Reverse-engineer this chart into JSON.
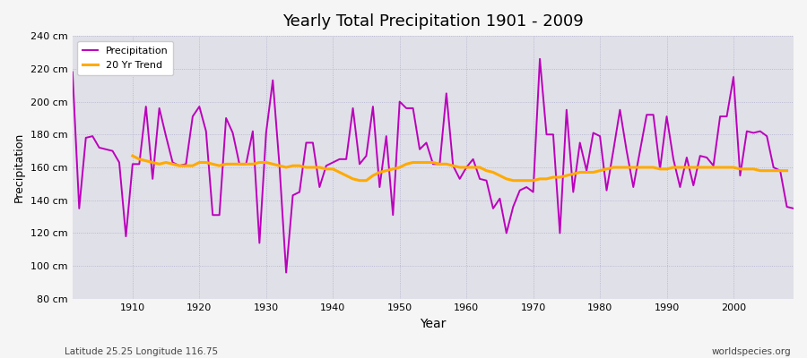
{
  "title": "Yearly Total Precipitation 1901 - 2009",
  "xlabel": "Year",
  "ylabel": "Precipitation",
  "subtitle_left": "Latitude 25.25 Longitude 116.75",
  "subtitle_right": "worldspecies.org",
  "ylim": [
    80,
    240
  ],
  "yticks": [
    80,
    100,
    120,
    140,
    160,
    180,
    200,
    220,
    240
  ],
  "ytick_labels": [
    "80 cm",
    "100 cm",
    "120 cm",
    "140 cm",
    "160 cm",
    "180 cm",
    "200 cm",
    "220 cm",
    "240 cm"
  ],
  "xlim": [
    1901,
    2009
  ],
  "xticks": [
    1910,
    1920,
    1930,
    1940,
    1950,
    1960,
    1970,
    1980,
    1990,
    2000
  ],
  "precip_color": "#bb00bb",
  "trend_color": "#ffaa00",
  "fig_bg_color": "#f5f5f5",
  "plot_bg_color": "#e0e0e8",
  "precip_linewidth": 1.4,
  "trend_linewidth": 2.2,
  "years": [
    1901,
    1902,
    1903,
    1904,
    1905,
    1906,
    1907,
    1908,
    1909,
    1910,
    1911,
    1912,
    1913,
    1914,
    1915,
    1916,
    1917,
    1918,
    1919,
    1920,
    1921,
    1922,
    1923,
    1924,
    1925,
    1926,
    1927,
    1928,
    1929,
    1930,
    1931,
    1932,
    1933,
    1934,
    1935,
    1936,
    1937,
    1938,
    1939,
    1940,
    1941,
    1942,
    1943,
    1944,
    1945,
    1946,
    1947,
    1948,
    1949,
    1950,
    1951,
    1952,
    1953,
    1954,
    1955,
    1956,
    1957,
    1958,
    1959,
    1960,
    1961,
    1962,
    1963,
    1964,
    1965,
    1966,
    1967,
    1968,
    1969,
    1970,
    1971,
    1972,
    1973,
    1974,
    1975,
    1976,
    1977,
    1978,
    1979,
    1980,
    1981,
    1982,
    1983,
    1984,
    1985,
    1986,
    1987,
    1988,
    1989,
    1990,
    1991,
    1992,
    1993,
    1994,
    1995,
    1996,
    1997,
    1998,
    1999,
    2000,
    2001,
    2002,
    2003,
    2004,
    2005,
    2006,
    2007,
    2008,
    2009
  ],
  "precip": [
    218,
    135,
    178,
    179,
    172,
    171,
    170,
    163,
    118,
    162,
    162,
    197,
    153,
    196,
    179,
    163,
    161,
    162,
    191,
    197,
    182,
    131,
    131,
    190,
    181,
    162,
    162,
    182,
    114,
    181,
    213,
    161,
    96,
    143,
    145,
    175,
    175,
    148,
    161,
    163,
    165,
    165,
    196,
    162,
    167,
    197,
    148,
    179,
    131,
    200,
    196,
    196,
    171,
    175,
    162,
    162,
    205,
    161,
    153,
    160,
    165,
    153,
    152,
    135,
    141,
    120,
    136,
    146,
    148,
    145,
    226,
    180,
    180,
    120,
    195,
    145,
    175,
    158,
    181,
    179,
    146,
    170,
    195,
    170,
    148,
    170,
    192,
    192,
    159,
    191,
    165,
    148,
    166,
    149,
    167,
    166,
    161,
    191,
    191,
    215,
    155,
    182,
    181,
    182,
    179,
    160,
    158,
    136,
    135
  ],
  "trend_years": [
    1910,
    1911,
    1912,
    1913,
    1914,
    1915,
    1916,
    1917,
    1918,
    1919,
    1920,
    1921,
    1922,
    1923,
    1924,
    1925,
    1926,
    1927,
    1928,
    1929,
    1930,
    1931,
    1932,
    1933,
    1934,
    1935,
    1936,
    1937,
    1938,
    1939,
    1940,
    1941,
    1942,
    1943,
    1944,
    1945,
    1946,
    1947,
    1948,
    1949,
    1950,
    1951,
    1952,
    1953,
    1954,
    1955,
    1956,
    1957,
    1958,
    1959,
    1960,
    1961,
    1962,
    1963,
    1964,
    1965,
    1966,
    1967,
    1968,
    1969,
    1970,
    1971,
    1972,
    1973,
    1974,
    1975,
    1976,
    1977,
    1978,
    1979,
    1980,
    1981,
    1982,
    1983,
    1984,
    1985,
    1986,
    1987,
    1988,
    1989,
    1990,
    1991,
    1992,
    1993,
    1994,
    1995,
    1996,
    1997,
    1998,
    1999,
    2000,
    2001,
    2002,
    2003,
    2004,
    2005,
    2006,
    2007,
    2008
  ],
  "trend": [
    167,
    165,
    164,
    163,
    162,
    163,
    162,
    161,
    161,
    161,
    163,
    163,
    162,
    161,
    162,
    162,
    162,
    162,
    162,
    163,
    163,
    162,
    161,
    160,
    161,
    161,
    160,
    160,
    160,
    159,
    159,
    157,
    155,
    153,
    152,
    152,
    155,
    157,
    158,
    159,
    160,
    162,
    163,
    163,
    163,
    163,
    162,
    162,
    161,
    160,
    160,
    160,
    160,
    158,
    157,
    155,
    153,
    152,
    152,
    152,
    152,
    153,
    153,
    154,
    154,
    155,
    156,
    157,
    157,
    157,
    158,
    159,
    160,
    160,
    160,
    160,
    160,
    160,
    160,
    159,
    159,
    160,
    160,
    160,
    160,
    160,
    160,
    160,
    160,
    160,
    160,
    159,
    159,
    159,
    158,
    158,
    158,
    158,
    158
  ]
}
